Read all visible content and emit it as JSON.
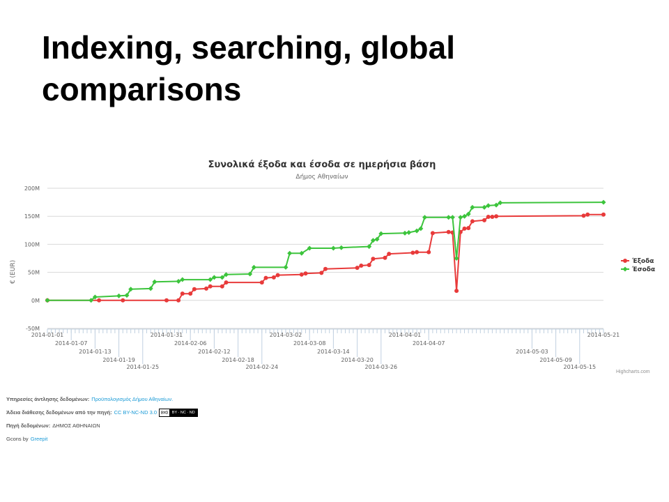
{
  "slide": {
    "title": "Indexing, searching, global comparisons"
  },
  "chart_data": {
    "type": "line",
    "title": "Συνολικά έξοδα και έσοδα σε ημερήσια βάση",
    "subtitle": "Δήμος Αθηναίων",
    "xlabel": "",
    "ylabel": "€ (EUR)",
    "ylim": [
      -50,
      200
    ],
    "y_unit": "M",
    "yticks": [
      "200M",
      "150M",
      "100M",
      "50M",
      "0M",
      "-50M"
    ],
    "xlim": [
      "2014-01-01",
      "2014-05-21"
    ],
    "xtick_labels": [
      "2014-01-01",
      "2014-01-07",
      "2014-01-13",
      "2014-01-19",
      "2014-01-25",
      "2014-01-31",
      "2014-02-06",
      "2014-02-12",
      "2014-02-18",
      "2014-02-24",
      "2014-03-02",
      "2014-03-08",
      "2014-03-14",
      "2014-03-20",
      "2014-03-26",
      "2014-04-01",
      "2014-04-07",
      "2014-05-03",
      "2014-05-09",
      "2014-05-15",
      "2014-05-21"
    ],
    "grid": true,
    "legend": "right",
    "series": [
      {
        "name": "Έξοδα",
        "color": "#e83a3a",
        "points": [
          [
            "2014-01-01",
            0
          ],
          [
            "2014-01-14",
            0
          ],
          [
            "2014-01-20",
            0
          ],
          [
            "2014-01-31",
            0
          ],
          [
            "2014-02-03",
            0
          ],
          [
            "2014-02-04",
            12
          ],
          [
            "2014-02-06",
            12
          ],
          [
            "2014-02-07",
            20
          ],
          [
            "2014-02-10",
            21
          ],
          [
            "2014-02-11",
            25
          ],
          [
            "2014-02-14",
            25
          ],
          [
            "2014-02-15",
            32
          ],
          [
            "2014-02-24",
            32
          ],
          [
            "2014-02-25",
            40
          ],
          [
            "2014-02-27",
            41
          ],
          [
            "2014-02-28",
            45
          ],
          [
            "2014-03-06",
            46
          ],
          [
            "2014-03-07",
            48
          ],
          [
            "2014-03-11",
            49
          ],
          [
            "2014-03-12",
            56
          ],
          [
            "2014-03-20",
            58
          ],
          [
            "2014-03-21",
            62
          ],
          [
            "2014-03-23",
            63
          ],
          [
            "2014-03-24",
            74
          ],
          [
            "2014-03-27",
            76
          ],
          [
            "2014-03-28",
            83
          ],
          [
            "2014-04-03",
            85
          ],
          [
            "2014-04-04",
            86
          ],
          [
            "2014-04-07",
            86
          ],
          [
            "2014-04-08",
            120
          ],
          [
            "2014-04-12",
            122
          ],
          [
            "2014-04-13",
            121
          ],
          [
            "2014-04-14",
            17
          ],
          [
            "2014-04-15",
            122
          ],
          [
            "2014-04-16",
            128
          ],
          [
            "2014-04-17",
            129
          ],
          [
            "2014-04-18",
            141
          ],
          [
            "2014-04-21",
            143
          ],
          [
            "2014-04-22",
            149
          ],
          [
            "2014-04-23",
            149
          ],
          [
            "2014-04-24",
            150
          ],
          [
            "2014-05-16",
            151
          ],
          [
            "2014-05-17",
            153
          ],
          [
            "2014-05-21",
            153
          ]
        ]
      },
      {
        "name": "Έσοδα",
        "color": "#3cc43c",
        "points": [
          [
            "2014-01-01",
            0
          ],
          [
            "2014-01-12",
            0
          ],
          [
            "2014-01-13",
            6
          ],
          [
            "2014-01-19",
            8
          ],
          [
            "2014-01-21",
            9
          ],
          [
            "2014-01-22",
            20
          ],
          [
            "2014-01-27",
            21
          ],
          [
            "2014-01-28",
            33
          ],
          [
            "2014-02-03",
            34
          ],
          [
            "2014-02-04",
            37
          ],
          [
            "2014-02-11",
            37
          ],
          [
            "2014-02-12",
            41
          ],
          [
            "2014-02-14",
            41
          ],
          [
            "2014-02-15",
            46
          ],
          [
            "2014-02-21",
            47
          ],
          [
            "2014-02-22",
            59
          ],
          [
            "2014-03-02",
            59
          ],
          [
            "2014-03-03",
            84
          ],
          [
            "2014-03-06",
            84
          ],
          [
            "2014-03-08",
            93
          ],
          [
            "2014-03-14",
            93
          ],
          [
            "2014-03-16",
            94
          ],
          [
            "2014-03-23",
            96
          ],
          [
            "2014-03-24",
            107
          ],
          [
            "2014-03-25",
            109
          ],
          [
            "2014-03-26",
            119
          ],
          [
            "2014-04-01",
            120
          ],
          [
            "2014-04-02",
            121
          ],
          [
            "2014-04-04",
            124
          ],
          [
            "2014-04-05",
            128
          ],
          [
            "2014-04-06",
            148
          ],
          [
            "2014-04-12",
            148
          ],
          [
            "2014-04-13",
            148
          ],
          [
            "2014-04-14",
            75
          ],
          [
            "2014-04-15",
            148
          ],
          [
            "2014-04-16",
            150
          ],
          [
            "2014-04-17",
            154
          ],
          [
            "2014-04-18",
            166
          ],
          [
            "2014-04-21",
            166
          ],
          [
            "2014-04-22",
            169
          ],
          [
            "2014-04-24",
            170
          ],
          [
            "2014-04-25",
            174
          ],
          [
            "2014-05-21",
            175
          ]
        ]
      }
    ]
  },
  "credits": "Highcharts.com",
  "footer": {
    "services_label": "Υπηρεσίες άντλησης δεδομένων:",
    "services_link": "Προϋπολογισμός Δήμου Αθηναίων.",
    "license_label": "Άδεια διάθεσης δεδομένων από την πηγή:",
    "license_link": "CC BY-NC-ND 3.0",
    "cc_badge_left": "(cc)",
    "cc_badge_right": "BY · NC · ND",
    "source_label": "Πηγή δεδομένων:",
    "source_value": "ΔΗΜΟΣ ΑΘΗΝΑΙΩΝ",
    "gcons_text": "Gcons by",
    "gcons_link": "Greepit"
  }
}
